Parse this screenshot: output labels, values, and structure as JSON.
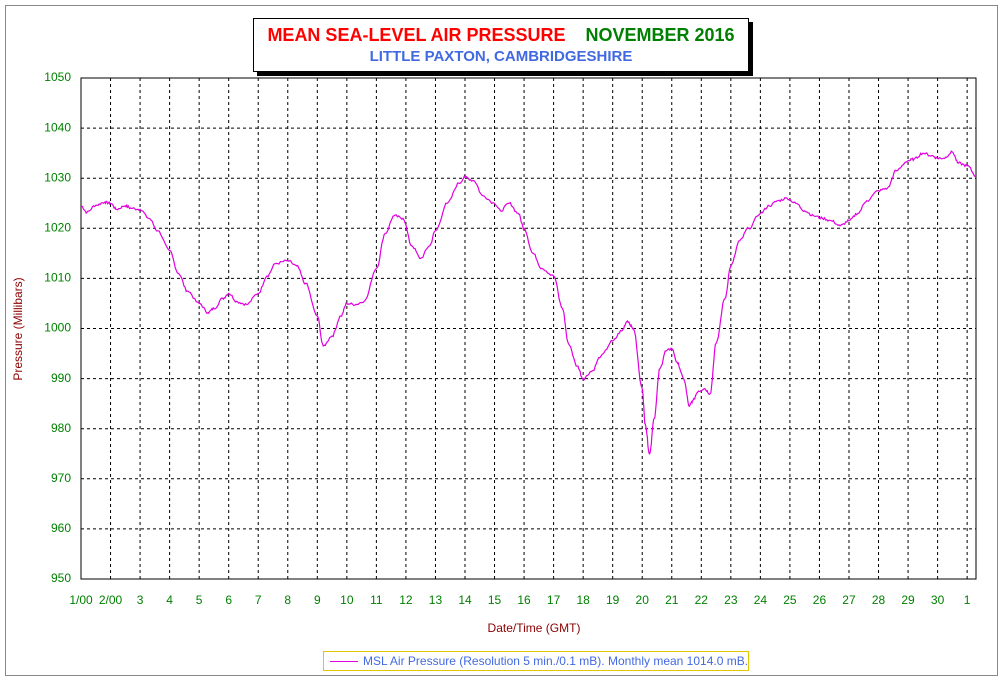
{
  "chart_data": {
    "type": "line",
    "title": "MEAN SEA-LEVEL AIR PRESSURE",
    "title_period": "NOVEMBER 2016",
    "subtitle": "LITTLE PAXTON, CAMBRIDGESHIRE",
    "xlabel": "Date/Time (GMT)",
    "ylabel": "Pressure (Millibars)",
    "ylim": [
      950,
      1050
    ],
    "y_ticks": [
      950,
      960,
      970,
      980,
      990,
      1000,
      1010,
      1020,
      1030,
      1040,
      1050
    ],
    "xlim": [
      1,
      31.3
    ],
    "x_ticks": [
      {
        "x": 1,
        "label": "1/00"
      },
      {
        "x": 2,
        "label": "2/00"
      },
      {
        "x": 3,
        "label": "3"
      },
      {
        "x": 4,
        "label": "4"
      },
      {
        "x": 5,
        "label": "5"
      },
      {
        "x": 6,
        "label": "6"
      },
      {
        "x": 7,
        "label": "7"
      },
      {
        "x": 8,
        "label": "8"
      },
      {
        "x": 9,
        "label": "9"
      },
      {
        "x": 10,
        "label": "10"
      },
      {
        "x": 11,
        "label": "11"
      },
      {
        "x": 12,
        "label": "12"
      },
      {
        "x": 13,
        "label": "13"
      },
      {
        "x": 14,
        "label": "14"
      },
      {
        "x": 15,
        "label": "15"
      },
      {
        "x": 16,
        "label": "16"
      },
      {
        "x": 17,
        "label": "17"
      },
      {
        "x": 18,
        "label": "18"
      },
      {
        "x": 19,
        "label": "19"
      },
      {
        "x": 20,
        "label": "20"
      },
      {
        "x": 21,
        "label": "21"
      },
      {
        "x": 22,
        "label": "22"
      },
      {
        "x": 23,
        "label": "23"
      },
      {
        "x": 24,
        "label": "24"
      },
      {
        "x": 25,
        "label": "25"
      },
      {
        "x": 26,
        "label": "26"
      },
      {
        "x": 27,
        "label": "27"
      },
      {
        "x": 28,
        "label": "28"
      },
      {
        "x": 29,
        "label": "29"
      },
      {
        "x": 30,
        "label": "30"
      },
      {
        "x": 31,
        "label": "1"
      }
    ],
    "grid": true,
    "legend_position": "bottom-center",
    "series": [
      {
        "name": "MSL Air Pressure (Resolution 5 min./0.1 mB). Monthly mean 1014.0 mB.",
        "color": "#e000e0",
        "x": [
          1.0,
          1.2,
          1.5,
          1.8,
          2.0,
          2.2,
          2.5,
          2.7,
          3.0,
          3.3,
          3.6,
          4.0,
          4.3,
          4.6,
          5.0,
          5.3,
          5.5,
          5.8,
          6.0,
          6.3,
          6.6,
          7.0,
          7.3,
          7.6,
          8.0,
          8.3,
          8.6,
          9.0,
          9.2,
          9.5,
          9.8,
          10.0,
          10.3,
          10.6,
          11.0,
          11.3,
          11.6,
          11.9,
          12.2,
          12.5,
          12.8,
          13.0,
          13.4,
          13.8,
          14.0,
          14.3,
          14.6,
          15.0,
          15.2,
          15.5,
          15.8,
          16.0,
          16.3,
          16.6,
          17.0,
          17.3,
          17.5,
          17.8,
          18.0,
          18.3,
          18.6,
          19.0,
          19.3,
          19.5,
          19.7,
          20.0,
          20.1,
          20.25,
          20.4,
          20.6,
          20.8,
          21.0,
          21.2,
          21.4,
          21.6,
          21.7,
          21.9,
          22.1,
          22.3,
          22.5,
          22.8,
          23.0,
          23.3,
          23.6,
          24.0,
          24.3,
          24.6,
          24.9,
          25.2,
          25.5,
          25.8,
          26.1,
          26.4,
          26.7,
          27.0,
          27.3,
          27.6,
          28.0,
          28.3,
          28.6,
          29.0,
          29.2,
          29.5,
          29.8,
          30.0,
          30.2,
          30.5,
          30.7,
          31.0,
          31.3
        ],
        "y": [
          1024.5,
          1023.2,
          1024.6,
          1025.2,
          1025.0,
          1023.8,
          1024.5,
          1024.0,
          1023.8,
          1022.0,
          1019.5,
          1015.5,
          1011.0,
          1007.5,
          1005.0,
          1003.2,
          1004.0,
          1006.0,
          1007.0,
          1005.3,
          1004.8,
          1007.0,
          1010.5,
          1013.0,
          1013.5,
          1012.5,
          1009.0,
          1002.5,
          996.5,
          998.5,
          1002.5,
          1005.0,
          1004.8,
          1005.5,
          1012.0,
          1019.0,
          1022.5,
          1022.0,
          1016.5,
          1014.0,
          1016.5,
          1019.5,
          1025.0,
          1029.0,
          1030.2,
          1029.5,
          1026.5,
          1025.0,
          1023.5,
          1025.0,
          1023.0,
          1020.0,
          1015.0,
          1012.0,
          1010.5,
          1004.0,
          997.0,
          992.5,
          990.0,
          991.5,
          994.5,
          997.5,
          999.5,
          1001.5,
          1000.0,
          988.0,
          981.0,
          975.0,
          982.0,
          992.0,
          995.5,
          996.0,
          993.0,
          990.0,
          984.5,
          985.5,
          987.5,
          988.0,
          987.0,
          997.0,
          1006.0,
          1012.5,
          1017.5,
          1020.0,
          1023.0,
          1024.5,
          1025.5,
          1026.0,
          1025.0,
          1023.5,
          1022.5,
          1022.0,
          1021.5,
          1020.5,
          1021.5,
          1023.0,
          1025.5,
          1027.5,
          1028.0,
          1031.5,
          1033.5,
          1033.8,
          1035.0,
          1034.5,
          1034.0,
          1034.0,
          1035.2,
          1033.0,
          1032.5,
          1030.5
        ]
      }
    ]
  }
}
